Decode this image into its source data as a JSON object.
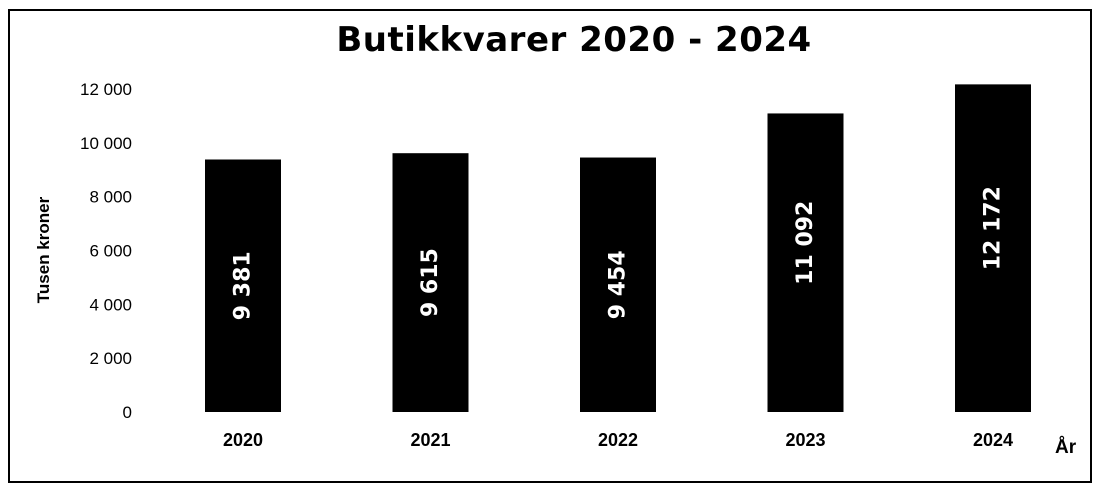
{
  "chart_data": {
    "type": "bar",
    "title": "Butikkvarer 2020 - 2024",
    "xlabel": "År",
    "ylabel": "Tusen kroner",
    "categories": [
      "2020",
      "2021",
      "2022",
      "2023",
      "2024"
    ],
    "values": [
      9381,
      9615,
      9454,
      11092,
      12172
    ],
    "value_labels": [
      "9 381",
      "9 615",
      "9 454",
      "11 092",
      "12 172"
    ],
    "ylim": [
      0,
      12000
    ],
    "yticks": [
      0,
      2000,
      4000,
      6000,
      8000,
      10000,
      12000
    ],
    "ytick_labels": [
      "0",
      "2 000",
      "4 000",
      "6 000",
      "8 000",
      "10 000",
      "12 000"
    ],
    "grid": false,
    "legend": "none",
    "bar_color": "#000000",
    "data_label_color": "#ffffff"
  }
}
